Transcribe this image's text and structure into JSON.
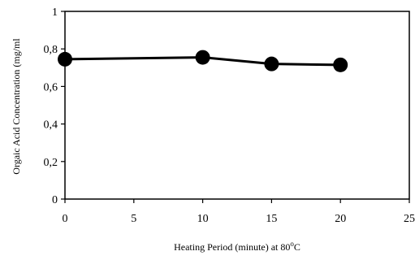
{
  "chart_data": {
    "type": "line",
    "title": "",
    "xlabel": "Heating Period (minute) at  80",
    "xlabel_sup": "o",
    "xlabel_unit": "C",
    "ylabel": "Orgaic Acid Concentration (mg/ml",
    "xlim": [
      0,
      25
    ],
    "ylim": [
      0,
      1
    ],
    "x_ticks": [
      0,
      5,
      10,
      15,
      20,
      25
    ],
    "y_ticks": [
      0,
      0.2,
      0.4,
      0.6,
      0.8,
      1
    ],
    "x_tick_labels": [
      "0",
      "5",
      "10",
      "15",
      "20",
      "25"
    ],
    "y_tick_labels": [
      "0",
      "0,2",
      "0,4",
      "0,6",
      "0,8",
      "1"
    ],
    "grid": false,
    "legend": "none",
    "series": [
      {
        "x": [
          0,
          10,
          15,
          20
        ],
        "y": [
          0.745,
          0.755,
          0.72,
          0.715
        ],
        "color": "#000000",
        "marker": "circle"
      }
    ]
  }
}
